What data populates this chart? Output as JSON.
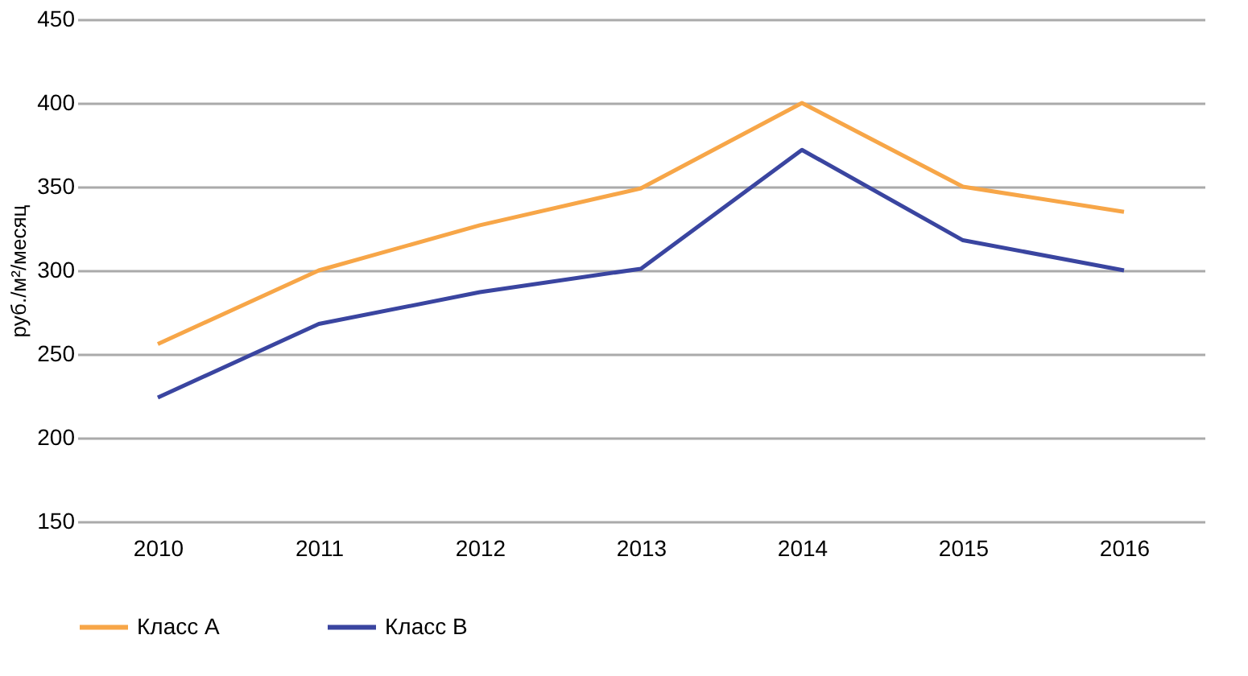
{
  "chart_data": {
    "type": "line",
    "ylabel": "руб./м²/месяц",
    "categories": [
      "2010",
      "2011",
      "2012",
      "2013",
      "2014",
      "2015",
      "2016"
    ],
    "series": [
      {
        "name": "Класс А",
        "color": "#f7a648",
        "values": [
          256,
          300,
          327,
          349,
          400,
          350,
          335
        ]
      },
      {
        "name": "Класс В",
        "color": "#3a45a0",
        "values": [
          224,
          268,
          287,
          301,
          372,
          318,
          300
        ]
      }
    ],
    "ylim": [
      150,
      450
    ],
    "yticks": [
      150,
      200,
      250,
      300,
      350,
      400,
      450
    ],
    "grid": "y",
    "legend": "bottom left",
    "marker": "none",
    "line_style": "solid"
  }
}
